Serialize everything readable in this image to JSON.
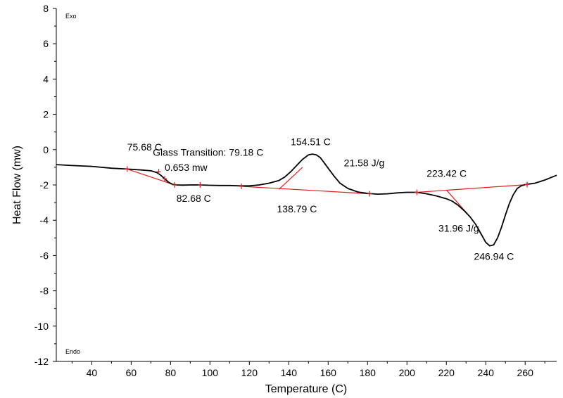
{
  "chart_data": {
    "type": "line",
    "xlabel": "Temperature (C)",
    "ylabel": "Heat Flow (mw)",
    "xlim": [
      22,
      276
    ],
    "ylim": [
      -12,
      8
    ],
    "xticks": [
      40,
      60,
      80,
      100,
      120,
      140,
      160,
      180,
      200,
      220,
      240,
      260
    ],
    "yticks": [
      -12,
      -10,
      -8,
      -6,
      -4,
      -2,
      0,
      2,
      4,
      6,
      8
    ],
    "grid": false,
    "corner_labels": {
      "top": "Exo",
      "bottom": "Endo"
    },
    "colors": {
      "curve": "#000000",
      "analysis": "#e02020",
      "axis": "#000000"
    },
    "series": [
      {
        "x": [
          22,
          30,
          40,
          50,
          58,
          65,
          70,
          73,
          75,
          77,
          79,
          81,
          83,
          86,
          90,
          95,
          100,
          105,
          110,
          115,
          120,
          125,
          130,
          135,
          138,
          141,
          144,
          147,
          150,
          152,
          154,
          156,
          158,
          160,
          163,
          166,
          170,
          175,
          180,
          185,
          190,
          195,
          200,
          205,
          210,
          215,
          220,
          223,
          226,
          229,
          232,
          235,
          238,
          240,
          242,
          244,
          246,
          248,
          250,
          252,
          254,
          256,
          258,
          260,
          262,
          265,
          270,
          276
        ],
        "y": [
          -0.85,
          -0.9,
          -0.95,
          -1.05,
          -1.1,
          -1.15,
          -1.2,
          -1.3,
          -1.45,
          -1.65,
          -1.85,
          -1.97,
          -2.0,
          -2.01,
          -2.0,
          -2.0,
          -2.02,
          -2.03,
          -2.03,
          -2.05,
          -2.05,
          -2.0,
          -1.9,
          -1.75,
          -1.55,
          -1.25,
          -0.9,
          -0.55,
          -0.3,
          -0.25,
          -0.3,
          -0.45,
          -0.75,
          -1.05,
          -1.5,
          -1.9,
          -2.2,
          -2.4,
          -2.48,
          -2.52,
          -2.5,
          -2.45,
          -2.42,
          -2.42,
          -2.5,
          -2.62,
          -2.78,
          -2.92,
          -3.15,
          -3.45,
          -3.8,
          -4.25,
          -4.85,
          -5.25,
          -5.45,
          -5.4,
          -5.0,
          -4.4,
          -3.7,
          -3.05,
          -2.55,
          -2.2,
          -2.05,
          -1.98,
          -1.95,
          -1.9,
          -1.72,
          -1.45
        ]
      }
    ],
    "analysis_lines": [
      {
        "x": [
          58,
          82
        ],
        "y": [
          -1.1,
          -2.0
        ]
      },
      {
        "x": [
          82,
          95
        ],
        "y": [
          -2.0,
          -2.0
        ]
      },
      {
        "x": [
          116,
          181
        ],
        "y": [
          -2.08,
          -2.5
        ]
      },
      {
        "x": [
          135,
          147
        ],
        "y": [
          -2.25,
          -1.0
        ]
      },
      {
        "x": [
          205,
          261
        ],
        "y": [
          -2.42,
          -1.98
        ]
      },
      {
        "x": [
          220,
          232
        ],
        "y": [
          -2.28,
          -3.8
        ]
      }
    ],
    "limit_markers": [
      {
        "x": 58,
        "y": -1.1
      },
      {
        "x": 74,
        "y": -1.25
      },
      {
        "x": 77,
        "y": -1.65
      },
      {
        "x": 82,
        "y": -2.0
      },
      {
        "x": 95,
        "y": -2.0
      },
      {
        "x": 116,
        "y": -2.08
      },
      {
        "x": 181,
        "y": -2.5
      },
      {
        "x": 205,
        "y": -2.42
      },
      {
        "x": 261,
        "y": -1.98
      }
    ],
    "annotations": [
      {
        "text": "75.68 C",
        "x": 58,
        "y": -0.05
      },
      {
        "text": "Glass Transition: 79.18 C",
        "x": 71,
        "y": -0.35
      },
      {
        "text": "0.653 mw",
        "x": 77,
        "y": -1.2
      },
      {
        "text": "82.68 C",
        "x": 83,
        "y": -2.95
      },
      {
        "text": "154.51 C",
        "x": 141,
        "y": 0.25
      },
      {
        "text": "21.58 J/g",
        "x": 168,
        "y": -0.95
      },
      {
        "text": "138.79 C",
        "x": 134,
        "y": -3.55
      },
      {
        "text": "223.42 C",
        "x": 210,
        "y": -1.55
      },
      {
        "text": "31.96 J/g",
        "x": 216,
        "y": -4.65
      },
      {
        "text": "246.94 C",
        "x": 234,
        "y": -6.25
      }
    ]
  }
}
